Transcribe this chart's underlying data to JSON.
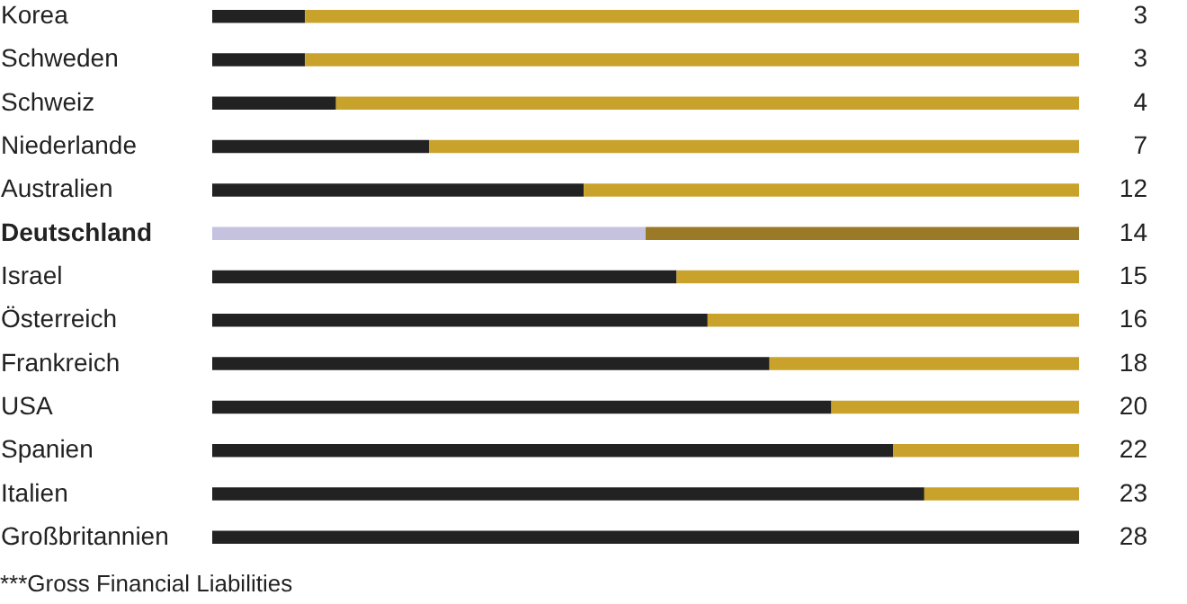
{
  "chart_data": {
    "type": "bar",
    "orientation": "horizontal",
    "stacked": true,
    "categories": [
      "Korea",
      "Schweden",
      "Schweiz",
      "Niederlande",
      "Australien",
      "Deutschland",
      "Israel",
      "Österreich",
      "Frankreich",
      "USA",
      "Spanien",
      "Italien",
      "Großbritannien"
    ],
    "series": [
      {
        "color": "#222222",
        "colors": [
          "#222222",
          "#222222",
          "#222222",
          "#222222",
          "#222222",
          "#c5c2e0",
          "#222222",
          "#222222",
          "#222222",
          "#222222",
          "#222222",
          "#222222",
          "#222222"
        ],
        "values": [
          3,
          3,
          4,
          7,
          12,
          14,
          15,
          16,
          18,
          20,
          22,
          23,
          28
        ],
        "value_labels": [
          "3",
          "3",
          "4",
          "7",
          "12",
          "14",
          "15",
          "16",
          "18",
          "20",
          "22",
          "23",
          "28"
        ]
      },
      {
        "color": "#c9a22c",
        "colors": [
          "#c9a22c",
          "#c9a22c",
          "#c9a22c",
          "#c9a22c",
          "#c9a22c",
          "#9a7a26",
          "#c9a22c",
          "#c9a22c",
          "#c9a22c",
          "#c9a22c",
          "#c9a22c",
          "#c9a22c",
          "#c9a22c"
        ],
        "values": [
          25,
          25,
          24,
          21,
          16,
          14,
          13,
          12,
          10,
          8,
          6,
          5,
          0
        ]
      }
    ],
    "xlim": [
      0,
      28
    ],
    "tick_labels": "y",
    "annotations": [
      "***Gross Financial Liabilities"
    ]
  }
}
